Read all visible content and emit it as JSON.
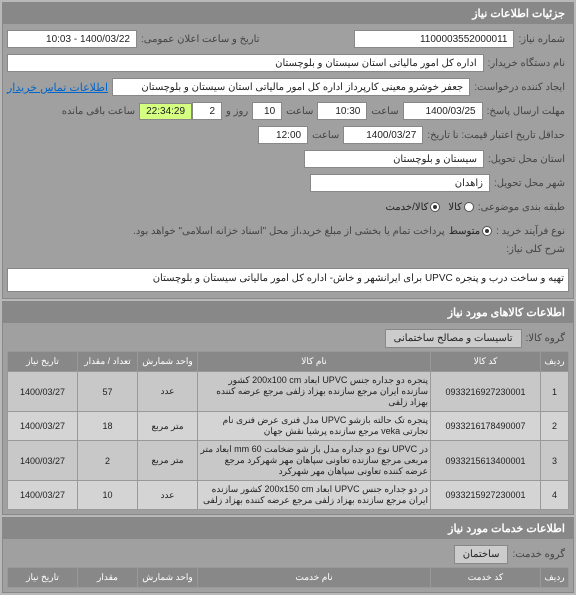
{
  "header": {
    "title": "جزئیات اطلاعات نیاز"
  },
  "need": {
    "number_label": "شماره نیاز:",
    "number": "1100003552000011",
    "announce_label": "تاریخ و ساعت اعلان عمومی:",
    "announce": "1400/03/22 - 10:03",
    "buyer_org_label": "نام دستگاه خریدار:",
    "buyer_org": "اداره کل امور مالیاتی استان سیستان و بلوچستان",
    "creator_label": "ایجاد کننده درخواست:",
    "creator": "جعفر خوشرو معینی کارپرداز اداره کل امور مالیاتی استان سیستان و بلوچستان",
    "contact_label": "اطلاعات تماس خریدار",
    "deadline_label": "مهلت ارسال پاسخ:",
    "deadline_date": "1400/03/25",
    "deadline_hour_label": "ساعت",
    "deadline_hour": "10:30",
    "remain_hour_label": "ساعت",
    "remain_hour": "10",
    "remain_day_label": "روز و",
    "remain_day": "2",
    "countdown": "22:34:29",
    "remain_label": "ساعت باقی مانده",
    "validity_label": "حداقل تاریخ اعتبار قیمت: نا تاریخ:",
    "validity_date": "1400/03/27",
    "validity_hour_label": "ساعت",
    "validity_hour": "12:00",
    "delivery_province_label": "استان محل تحویل:",
    "delivery_province": "سیستان و بلوچستان",
    "delivery_city_label": "شهر محل تحویل:",
    "delivery_city": "زاهدان",
    "budget_label": "طبقه بندی موضوعی:",
    "budget_kala": "کالا",
    "budget_khadamat": "کالا/خدمت",
    "process_label": "نوع فرآیند خرید :",
    "process_opt1": "متوسط",
    "process_note": "پرداخت تمام یا بخشی از مبلغ خرید،از محل \"اسناد خزانه اسلامی\" خواهد بود.",
    "desc_label": "شرح کلی نیاز:",
    "desc": "تهیه و ساخت درب و پنجره UPVC برای ایرانشهر و خاش- اداره کل امور مالیاتی سیستان و بلوچستان"
  },
  "goods": {
    "section_title": "اطلاعات کالاهای مورد نیاز",
    "group_label": "گروه کالا:",
    "group": "تاسیسات و مصالح ساختمانی",
    "cols": {
      "row": "ردیف",
      "code": "کد کالا",
      "name": "نام کالا",
      "unit": "واحد شمارش",
      "qty": "تعداد / مقدار",
      "date": "تاریخ نیاز"
    },
    "rows": [
      {
        "n": "1",
        "code": "0933216927230001",
        "name": "پنجره دو جداره جنس UPVC ابعاد 200x100 cm کشور سازنده ایران مرجع سازنده بهزاد زلفی مرجع عرضه کننده بهزاد زلفی",
        "unit": "عدد",
        "qty": "57",
        "date": "1400/03/27"
      },
      {
        "n": "2",
        "code": "0933216178490007",
        "name": "پنجره تک حالته بازشو UPVC مدل فنری عرض فنری نام تجارتی veka مرجع سازنده پرشیا نقش جهان",
        "unit": "متر مربع",
        "qty": "18",
        "date": "1400/03/27"
      },
      {
        "n": "3",
        "code": "0933215613400001",
        "name": "در UPVC نوع دو جداره مدل باز شو ضخامت mm 60 ابعاد متر مربعی مرجع سازنده تعاونی سپاهان مهر شهرکرد مرجع عرضه کننده تعاونی سپاهان مهر شهرکرد",
        "unit": "متر مربع",
        "qty": "2",
        "date": "1400/03/27"
      },
      {
        "n": "4",
        "code": "0933215927230001",
        "name": "در دو جداره جنس UPVC ابعاد 200x150 cm کشور سازنده ایران مرجع سازنده بهزاد زلفی مرجع عرضه کننده بهزاد زلفی",
        "unit": "عدد",
        "qty": "10",
        "date": "1400/03/27"
      }
    ]
  },
  "services": {
    "section_title": "اطلاعات خدمات مورد نیاز",
    "group_label": "گروه خدمت:",
    "group": "ساختمان",
    "cols": {
      "row": "ردیف",
      "code": "کد خدمت",
      "name": "نام خدمت",
      "unit": "واحد شمارش",
      "qty": "مقدار",
      "date": "تاریخ نیاز"
    }
  }
}
